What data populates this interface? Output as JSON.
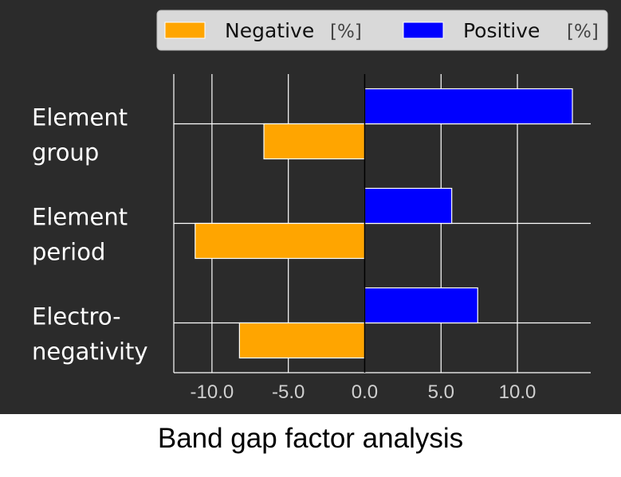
{
  "caption": "Band gap factor analysis",
  "chart_data": {
    "type": "bar",
    "orientation": "horizontal",
    "categories": [
      [
        "Element",
        "group"
      ],
      [
        "Element",
        "period"
      ],
      [
        "Electro-",
        "negativity"
      ]
    ],
    "series": [
      {
        "name": "Positive",
        "unit": "[%]",
        "color": "#0000ff",
        "values": [
          13.6,
          5.7,
          7.4
        ]
      },
      {
        "name": "Negative",
        "unit": "[%]",
        "color": "#ffa500",
        "values": [
          -6.6,
          -11.1,
          -8.2
        ]
      }
    ],
    "x_ticks": [
      -10.0,
      -5.0,
      0.0,
      5.0,
      10.0
    ],
    "x_tick_labels": [
      "-10.0",
      "-5.0",
      "0.0",
      "5.0",
      "10.0"
    ],
    "xlim": [
      -12.5,
      14.8
    ],
    "grid": true,
    "legend": {
      "placement": "top-right",
      "order": [
        "Negative",
        "Positive"
      ]
    },
    "colors": {
      "background": "#2b2b2b",
      "grid": "#ffffff",
      "zero_line": "#000000"
    }
  }
}
